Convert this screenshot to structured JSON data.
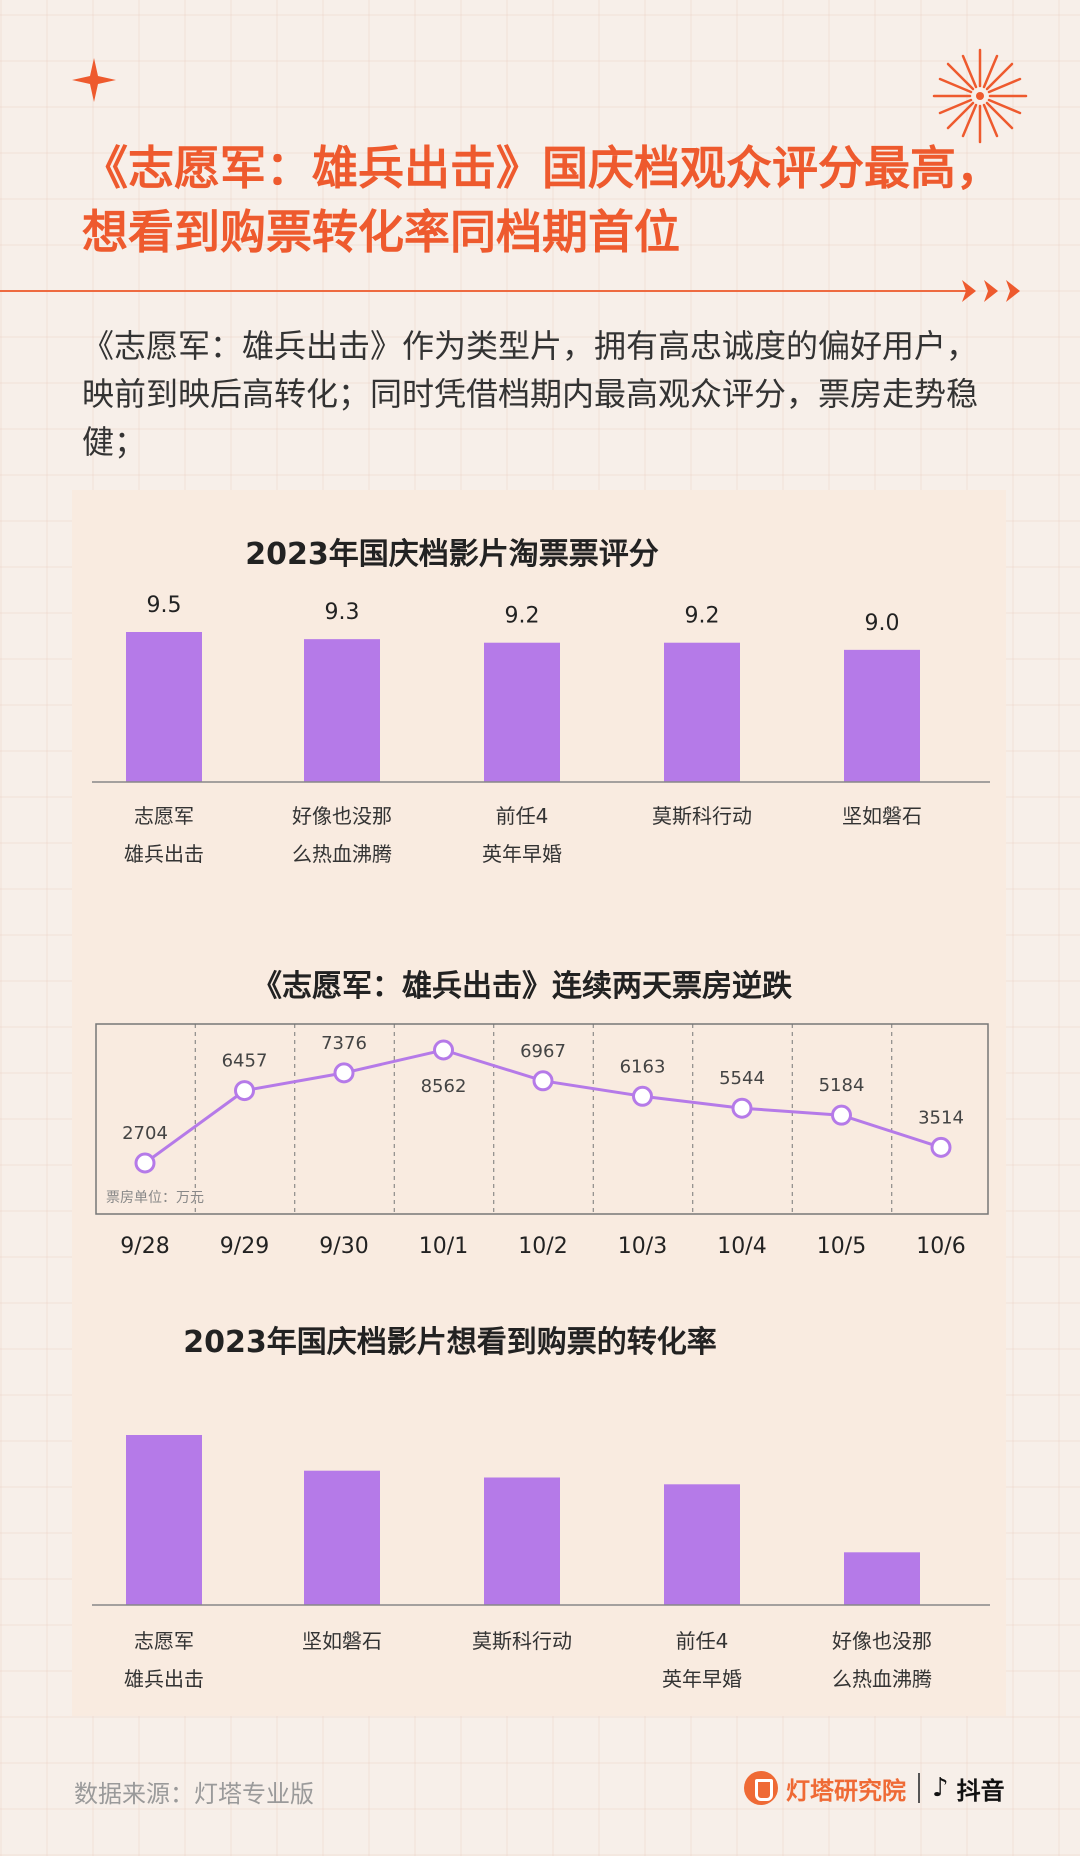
{
  "header": {
    "title": "《志愿军：雄兵出击》国庆档观众评分最高，想看到购票转化率同档期首位",
    "description": "《志愿军：雄兵出击》作为类型片，拥有高忠诚度的偏好用户，映前到映后高转化；同时凭借档期内最高观众评分，票房走势稳健；"
  },
  "footer": {
    "source": "数据来源：灯塔专业版",
    "brand": "灯塔研究院",
    "platform": "抖音"
  },
  "colors": {
    "accent": "#ee5a2e",
    "bar": "#b57ae8",
    "line": "#b57ae8"
  },
  "chart_data": [
    {
      "type": "bar",
      "title": "2023年国庆档影片淘票票评分",
      "categories": [
        [
          "志愿军",
          "雄兵出击"
        ],
        [
          "好像也没那",
          "么热血沸腾"
        ],
        [
          "前任4",
          "英年早婚"
        ],
        [
          "莫斯科行动"
        ],
        [
          "坚如磐石"
        ]
      ],
      "values": [
        9.5,
        9.3,
        9.2,
        9.2,
        9.0
      ],
      "value_labels": [
        "9.5",
        "9.3",
        "9.2",
        "9.2",
        "9.0"
      ],
      "ylim": [
        5.3,
        9.5
      ]
    },
    {
      "type": "line",
      "title": "《志愿军：雄兵出击》连续两天票房逆跌",
      "x": [
        "9/28",
        "9/29",
        "9/30",
        "10/1",
        "10/2",
        "10/3",
        "10/4",
        "10/5",
        "10/6"
      ],
      "values": [
        2704,
        6457,
        7376,
        8562,
        6967,
        6163,
        5544,
        5184,
        3514
      ],
      "unit": "票房单位：万元",
      "ylim": [
        2704,
        8562
      ]
    },
    {
      "type": "bar",
      "title": "2023年国庆档影片想看到购票的转化率",
      "categories": [
        [
          "志愿军",
          "雄兵出击"
        ],
        [
          "坚如磐石"
        ],
        [
          "莫斯科行动"
        ],
        [
          "前任4",
          "英年早婚"
        ],
        [
          "好像也没那",
          "么热血沸腾"
        ]
      ],
      "values": [
        1.0,
        0.79,
        0.75,
        0.71,
        0.31
      ],
      "ylim": [
        0,
        1
      ]
    }
  ]
}
